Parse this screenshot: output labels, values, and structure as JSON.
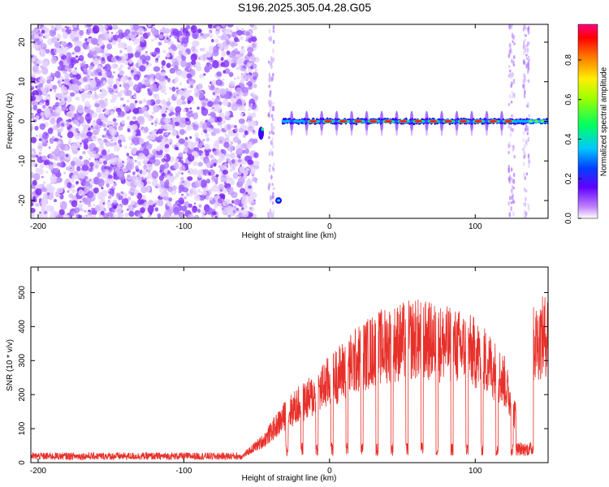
{
  "title": "S196.2025.305.04.28.G05",
  "colors": {
    "snr_line": "#e8302a",
    "colormap": [
      "#ffffff",
      "#a000ff",
      "#3c00ff",
      "#00b4ff",
      "#00ff80",
      "#7fff00",
      "#ffe600",
      "#ff7f00",
      "#ff0000",
      "#ff0080"
    ]
  },
  "chart_data": [
    {
      "type": "heatmap",
      "xlabel": "Height of straight line (km)",
      "ylabel": "Frequency (Hz)",
      "xlim": [
        -205,
        150
      ],
      "ylim": [
        -24.5,
        24.5
      ],
      "xticks": [
        -200,
        -100,
        0,
        100
      ],
      "yticks": [
        -20,
        -10,
        0,
        10,
        20
      ],
      "colorbar": {
        "label": "Normalized spectral amplitude",
        "range": [
          0.0,
          0.98
        ],
        "ticks": [
          0.0,
          0.2,
          0.4,
          0.6,
          0.8
        ]
      },
      "features": {
        "noise_region_x": [
          -205,
          -50
        ],
        "tone_start_x": -32,
        "tone_frequency": 0,
        "tone_pulse_period_km": 10.3
      }
    },
    {
      "type": "line",
      "xlabel": "Height of straight line (km)",
      "ylabel": "SNR (10 * v/v)",
      "xlim": [
        -205,
        150
      ],
      "ylim": [
        0,
        575
      ],
      "xticks": [
        -200,
        -100,
        0,
        100
      ],
      "yticks": [
        0,
        100,
        200,
        300,
        400,
        500
      ],
      "series": [
        {
          "envelope_x": [
            -205,
            -60,
            -45,
            -30,
            -20,
            -10,
            0,
            10,
            20,
            30,
            40,
            50,
            60,
            70,
            80,
            90,
            100,
            110,
            120,
            128,
            132,
            140,
            150
          ],
          "envelope_y": [
            20,
            22,
            80,
            170,
            210,
            240,
            290,
            330,
            370,
            400,
            420,
            430,
            440,
            430,
            420,
            410,
            390,
            350,
            290,
            160,
            30,
            420,
            460
          ]
        }
      ]
    }
  ]
}
